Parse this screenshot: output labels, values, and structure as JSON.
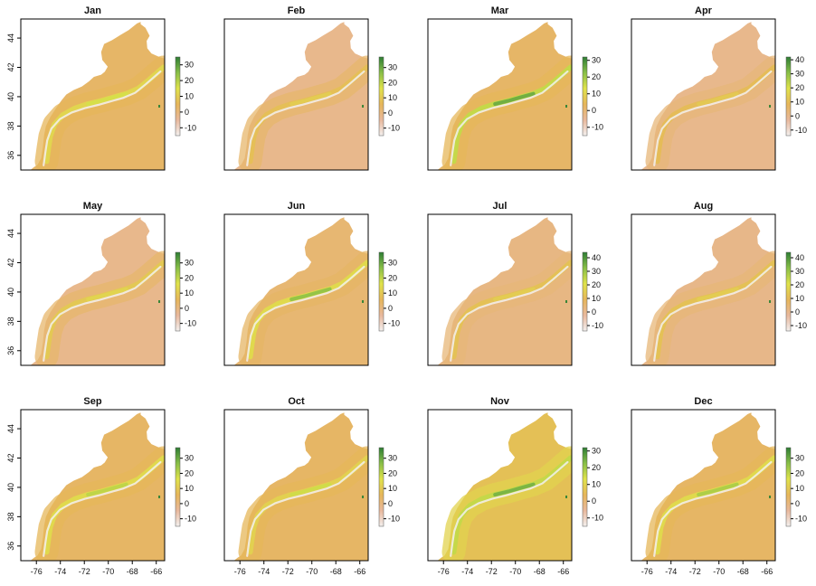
{
  "chart_data": {
    "type": "heatmap",
    "layout": "3x4 grid of small multiples",
    "colormap": [
      "#f3f0ee",
      "#e8b89c",
      "#e6b65a",
      "#dfe24a",
      "#88bf47",
      "#2e7d34"
    ],
    "land_color": "#ffffff",
    "x_axis": {
      "ticks": [
        -76,
        -74,
        -72,
        -70,
        -68,
        -66
      ],
      "tick_labels": [
        "-76",
        "-74",
        "-72",
        "-70",
        "-68",
        "-66"
      ],
      "xlim": [
        -77.3,
        -65.3
      ]
    },
    "y_axis": {
      "ticks": [
        36,
        38,
        40,
        42,
        44
      ],
      "tick_labels": [
        "36",
        "38",
        "40",
        "42",
        "44"
      ],
      "ylim": [
        35.0,
        45.3
      ]
    },
    "panels": [
      {
        "title": "Jan",
        "colorbar_ticks": [
          30,
          20,
          10,
          0,
          -10
        ],
        "colorbar_labels": [
          "30",
          "20",
          "10",
          "0",
          "-10"
        ],
        "range": [
          -15,
          35
        ],
        "offshore_value": 3,
        "shelf_value": 5,
        "front_value": 12,
        "front_max": 16
      },
      {
        "title": "Feb",
        "colorbar_ticks": [
          30,
          20,
          10,
          0,
          -10
        ],
        "colorbar_labels": [
          "30",
          "20",
          "10",
          "0",
          "-10"
        ],
        "range": [
          -15,
          37
        ],
        "offshore_value": -2,
        "shelf_value": 3,
        "front_value": 8,
        "front_max": 11
      },
      {
        "title": "Mar",
        "colorbar_ticks": [
          30,
          20,
          10,
          0,
          -10
        ],
        "colorbar_labels": [
          "30",
          "20",
          "10",
          "0",
          "-10"
        ],
        "range": [
          -15,
          32
        ],
        "offshore_value": 2,
        "shelf_value": 4,
        "front_value": 16,
        "front_max": 25
      },
      {
        "title": "Apr",
        "colorbar_ticks": [
          40,
          30,
          20,
          10,
          0,
          -10
        ],
        "colorbar_labels": [
          "40",
          "30",
          "20",
          "10",
          "0",
          "-10"
        ],
        "range": [
          -14,
          42
        ],
        "offshore_value": 0,
        "shelf_value": 3,
        "front_value": 10,
        "front_max": 13
      },
      {
        "title": "May",
        "colorbar_ticks": [
          30,
          20,
          10,
          0,
          -10
        ],
        "colorbar_labels": [
          "30",
          "20",
          "10",
          "0",
          "-10"
        ],
        "range": [
          -15,
          37
        ],
        "offshore_value": -2,
        "shelf_value": 3,
        "front_value": 10,
        "front_max": 13
      },
      {
        "title": "Jun",
        "colorbar_ticks": [
          30,
          20,
          10,
          0,
          -10
        ],
        "colorbar_labels": [
          "30",
          "20",
          "10",
          "0",
          "-10"
        ],
        "range": [
          -15,
          37
        ],
        "offshore_value": 2,
        "shelf_value": 4,
        "front_value": 14,
        "front_max": 25
      },
      {
        "title": "Jul",
        "colorbar_ticks": [
          40,
          30,
          20,
          10,
          0,
          -10
        ],
        "colorbar_labels": [
          "40",
          "30",
          "20",
          "10",
          "0",
          "-10"
        ],
        "range": [
          -14,
          44
        ],
        "offshore_value": 2,
        "shelf_value": 4,
        "front_value": 12,
        "front_max": 15
      },
      {
        "title": "Aug",
        "colorbar_ticks": [
          40,
          30,
          20,
          10,
          0,
          -10
        ],
        "colorbar_labels": [
          "40",
          "30",
          "20",
          "10",
          "0",
          "-10"
        ],
        "range": [
          -14,
          44
        ],
        "offshore_value": 1,
        "shelf_value": 4,
        "front_value": 12,
        "front_max": 15
      },
      {
        "title": "Sep",
        "colorbar_ticks": [
          30,
          20,
          10,
          0,
          -10
        ],
        "colorbar_labels": [
          "30",
          "20",
          "10",
          "0",
          "-10"
        ],
        "range": [
          -15,
          37
        ],
        "offshore_value": 4,
        "shelf_value": 6,
        "front_value": 14,
        "front_max": 20
      },
      {
        "title": "Oct",
        "colorbar_ticks": [
          30,
          20,
          10,
          0,
          -10
        ],
        "colorbar_labels": [
          "30",
          "20",
          "10",
          "0",
          "-10"
        ],
        "range": [
          -15,
          37
        ],
        "offshore_value": 4,
        "shelf_value": 6,
        "front_value": 12,
        "front_max": 18
      },
      {
        "title": "Nov",
        "colorbar_ticks": [
          30,
          20,
          10,
          0,
          -10
        ],
        "colorbar_labels": [
          "30",
          "20",
          "10",
          "0",
          "-10"
        ],
        "range": [
          -15,
          32
        ],
        "offshore_value": 6,
        "shelf_value": 10,
        "front_value": 16,
        "front_max": 24
      },
      {
        "title": "Dec",
        "colorbar_ticks": [
          30,
          20,
          10,
          0,
          -10
        ],
        "colorbar_labels": [
          "30",
          "20",
          "10",
          "0",
          "-10"
        ],
        "range": [
          -15,
          37
        ],
        "offshore_value": 4,
        "shelf_value": 6,
        "front_value": 14,
        "front_max": 22
      }
    ]
  }
}
